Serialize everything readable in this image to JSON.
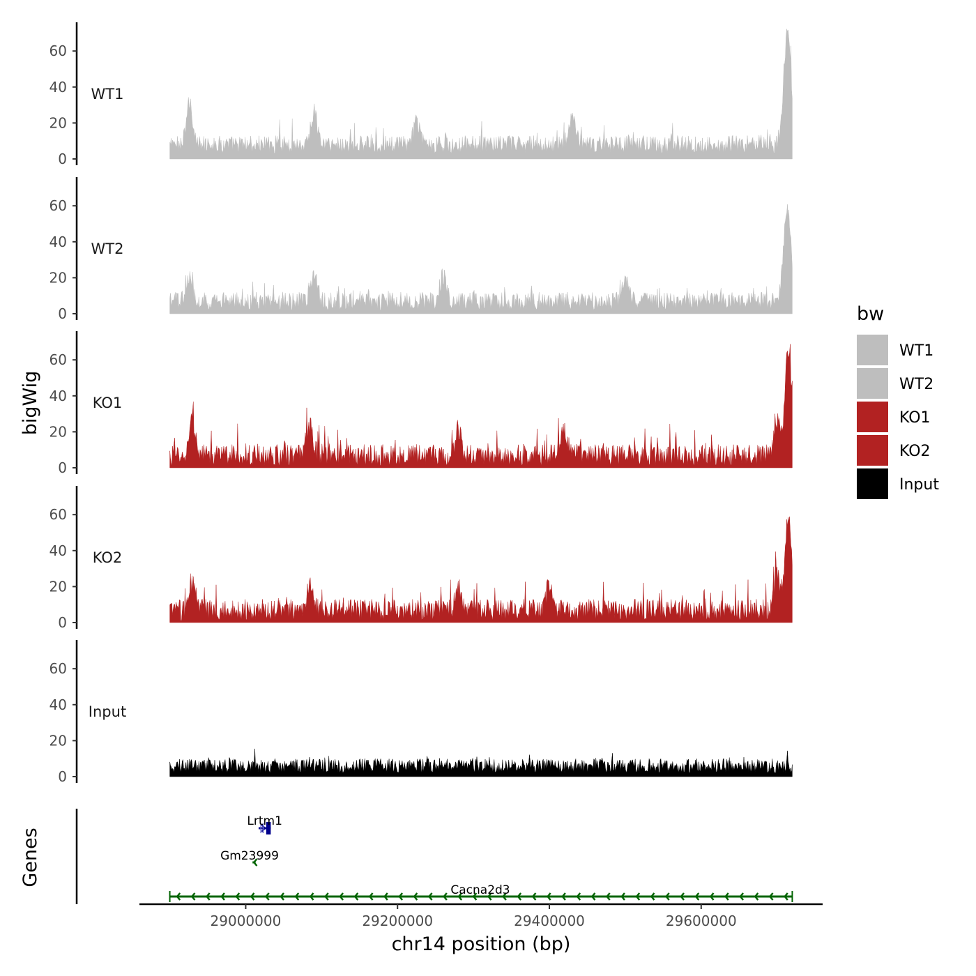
{
  "chart_data": {
    "type": "area",
    "title": "",
    "xlabel": "chr14 position (bp)",
    "ylabel": "bigWig",
    "genes_label": "Genes",
    "xlim": [
      28860000,
      29760000
    ],
    "data_range": [
      28900000,
      29720000
    ],
    "ylim": [
      0,
      75
    ],
    "x_ticks": [
      29000000,
      29200000,
      29400000,
      29600000
    ],
    "x_tick_labels": [
      "29000000",
      "29200000",
      "29400000",
      "29600000"
    ],
    "y_ticks": [
      0,
      20,
      40,
      60
    ],
    "y_tick_labels": [
      "0",
      "20",
      "40",
      "60"
    ],
    "grid": false,
    "legend": {
      "title": "bw",
      "position": "right",
      "items": [
        {
          "label": "WT1",
          "color": "#bebebe"
        },
        {
          "label": "WT2",
          "color": "#bebebe"
        },
        {
          "label": "KO1",
          "color": "#b22222"
        },
        {
          "label": "KO2",
          "color": "#b22222"
        },
        {
          "label": "Input",
          "color": "#000000"
        }
      ]
    },
    "series": [
      {
        "name": "WT1",
        "color": "#bebebe",
        "baseline": 8,
        "noise": 5,
        "spike": 10,
        "peaks": [
          [
            28925000,
            20
          ],
          [
            29090000,
            18
          ],
          [
            29225000,
            12
          ],
          [
            29430000,
            16
          ],
          [
            29710000,
            22
          ],
          [
            29715000,
            50
          ]
        ]
      },
      {
        "name": "WT2",
        "color": "#bebebe",
        "baseline": 7,
        "noise": 5,
        "spike": 8,
        "peaks": [
          [
            28925000,
            13
          ],
          [
            29090000,
            15
          ],
          [
            29260000,
            14
          ],
          [
            29500000,
            12
          ],
          [
            29710000,
            18
          ],
          [
            29715000,
            40
          ]
        ]
      },
      {
        "name": "KO1",
        "color": "#b22222",
        "baseline": 7,
        "noise": 6,
        "spike": 14,
        "peaks": [
          [
            28930000,
            16
          ],
          [
            29085000,
            15
          ],
          [
            29280000,
            14
          ],
          [
            29420000,
            14
          ],
          [
            29700000,
            20
          ],
          [
            29715000,
            60
          ]
        ]
      },
      {
        "name": "KO2",
        "color": "#b22222",
        "baseline": 7,
        "noise": 6,
        "spike": 13,
        "peaks": [
          [
            28930000,
            15
          ],
          [
            29085000,
            14
          ],
          [
            29280000,
            12
          ],
          [
            29400000,
            14
          ],
          [
            29700000,
            20
          ],
          [
            29715000,
            52
          ]
        ]
      },
      {
        "name": "Input",
        "color": "#000000",
        "baseline": 6,
        "noise": 4,
        "spike": 6,
        "peaks": []
      }
    ],
    "genes": [
      {
        "name": "Lrtm1",
        "start": 29017000,
        "end": 29033000,
        "strand": "+",
        "color": "#00008b",
        "row": 0
      },
      {
        "name": "Gm23999",
        "start": 29009000,
        "end": 29013000,
        "strand": "-",
        "color": "#006400",
        "row": 1
      },
      {
        "name": "Cacna2d3",
        "start": 28900000,
        "end": 29720000,
        "strand": "-",
        "color": "#006400",
        "row": 2
      }
    ]
  }
}
